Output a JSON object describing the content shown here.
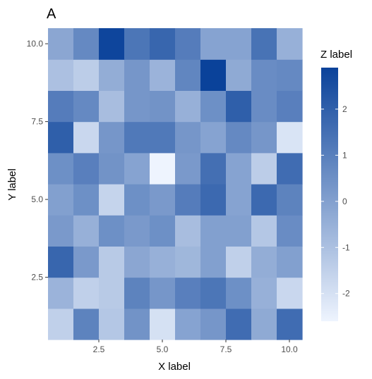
{
  "chart_data": {
    "type": "heatmap",
    "panel_tag": "A",
    "xlabel": "X label",
    "ylabel": "Y label",
    "legend_title": "Z label",
    "x": [
      1,
      2,
      3,
      4,
      5,
      6,
      7,
      8,
      9,
      10
    ],
    "y": [
      1,
      2,
      3,
      4,
      5,
      6,
      7,
      8,
      9,
      10
    ],
    "xlim": [
      0.5,
      10.5
    ],
    "ylim": [
      0.5,
      10.5
    ],
    "x_ticks": [
      2.5,
      5.0,
      7.5,
      10.0
    ],
    "x_tick_labels": [
      "2.5",
      "5.0",
      "7.5",
      "10.0"
    ],
    "y_ticks": [
      2.5,
      5.0,
      7.5,
      10.0
    ],
    "y_tick_labels": [
      "2.5",
      "5.0",
      "7.5",
      "10.0"
    ],
    "zlim": [
      -2.6,
      2.9
    ],
    "legend_ticks": [
      2,
      1,
      0,
      -1,
      -2
    ],
    "legend_tick_labels": [
      "2",
      "1",
      "0",
      "-1",
      "-2"
    ],
    "color_low": "#eef4fe",
    "color_high": "#0a429a",
    "grid": false,
    "legend_position": "right",
    "z": [
      [
        -1.5,
        0.9,
        -1.2,
        0.4,
        -2.0,
        -0.1,
        0.3,
        1.6,
        -0.3,
        1.6
      ],
      [
        -0.6,
        -1.5,
        -1.3,
        0.9,
        0.3,
        1.0,
        1.3,
        0.5,
        -0.5,
        -1.7
      ],
      [
        1.8,
        0.2,
        -1.3,
        -0.2,
        -0.5,
        -0.7,
        0.0,
        -1.5,
        -0.4,
        0.0
      ],
      [
        0.2,
        -0.5,
        0.5,
        0.2,
        0.5,
        -0.9,
        0.0,
        0.0,
        -1.2,
        0.6
      ],
      [
        0.0,
        0.5,
        -1.6,
        0.5,
        0.2,
        1.1,
        1.7,
        -0.1,
        1.7,
        0.9
      ],
      [
        0.5,
        1.0,
        0.4,
        -0.1,
        -2.6,
        0.2,
        1.5,
        -0.1,
        -1.4,
        1.6
      ],
      [
        2.0,
        -1.7,
        0.3,
        1.2,
        1.2,
        0.3,
        -0.1,
        0.7,
        0.3,
        -2.1
      ],
      [
        1.1,
        0.7,
        -0.9,
        0.3,
        0.4,
        -0.5,
        0.5,
        2.0,
        0.6,
        1.0
      ],
      [
        -1.0,
        -1.4,
        -0.4,
        0.3,
        -0.6,
        0.8,
        2.9,
        -0.3,
        0.6,
        0.7
      ],
      [
        -0.2,
        0.7,
        2.8,
        1.3,
        1.8,
        1.1,
        -0.1,
        -0.1,
        1.4,
        -0.5
      ]
    ]
  }
}
